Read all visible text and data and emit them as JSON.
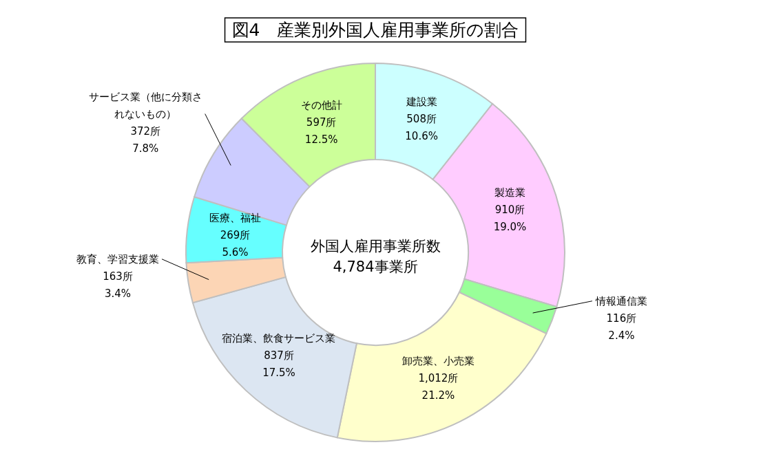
{
  "chart_data": {
    "type": "donut",
    "title": "図4　産業別外国人雇用事業所の割合",
    "categories": [
      "建設業",
      "製造業",
      "情報通信業",
      "卸売業、小売業",
      "宿泊業、飲食サービス業",
      "教育、学習支援業",
      "医療、福祉",
      "サービス業（他に分類されないもの）",
      "その他計"
    ],
    "values": [
      508,
      910,
      116,
      1012,
      837,
      163,
      269,
      372,
      597
    ],
    "value_labels": [
      "508所\n10.6%",
      "910所\n19.0%",
      "116所\n2.4%",
      "1,012所\n21.2%",
      "837所\n17.5%",
      "163所\n3.4%",
      "269所\n5.6%",
      "372所\n7.8%",
      "597所\n12.5%"
    ],
    "colors": [
      "#ccffff",
      "#ffccff",
      "#99ff99",
      "#ffffcc",
      "#dce6f2",
      "#fcd5b5",
      "#66ffff",
      "#ccccff",
      "#ccff99"
    ],
    "annotations": [
      "外国人雇用事業所数",
      "4,784事業所"
    ]
  }
}
